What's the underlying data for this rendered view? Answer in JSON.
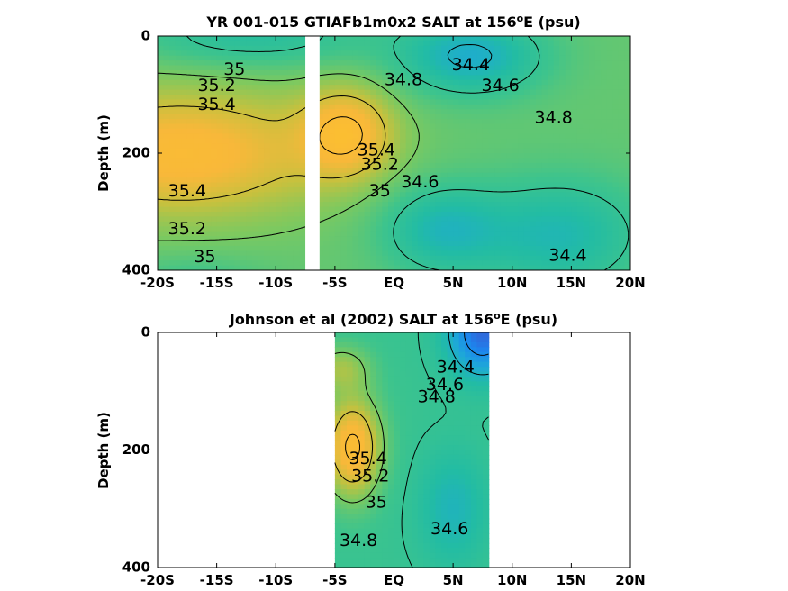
{
  "chart_data": [
    {
      "type": "heatmap",
      "title": "YR 001-015 GTIAFb1m0x2 SALT at 156",
      "title_superscript": "o",
      "title_suffix": "E (psu)",
      "ylabel": "Depth (m)",
      "xlim": [
        -20,
        20
      ],
      "ylim": [
        0,
        400
      ],
      "x_ticks": [
        -20,
        -15,
        -10,
        -5,
        0,
        5,
        10,
        15,
        20
      ],
      "x_tick_labels": [
        "-20S",
        "-15S",
        "-10S",
        "-5S",
        "EQ",
        "5N",
        "10N",
        "15N",
        "20N"
      ],
      "y_ticks": [
        0,
        200,
        400
      ],
      "y_tick_labels": [
        "0",
        "200",
        "400"
      ],
      "data_gap_x": [
        -7.5,
        -6.3
      ],
      "contour_levels": [
        34.4,
        34.6,
        34.8,
        35,
        35.2,
        35.4
      ],
      "contour_labels": [
        {
          "text": "35",
          "x": -13.5,
          "depth": 58
        },
        {
          "text": "35.2",
          "x": -15,
          "depth": 85
        },
        {
          "text": "35.4",
          "x": -15,
          "depth": 118
        },
        {
          "text": "35.4",
          "x": -17.5,
          "depth": 265
        },
        {
          "text": "35.2",
          "x": -17.5,
          "depth": 330
        },
        {
          "text": "35",
          "x": -16,
          "depth": 378
        },
        {
          "text": "34.8",
          "x": 0.8,
          "depth": 75
        },
        {
          "text": "34.4",
          "x": 6.5,
          "depth": 50
        },
        {
          "text": "34.6",
          "x": 9,
          "depth": 85
        },
        {
          "text": "34.8",
          "x": 13.5,
          "depth": 140
        },
        {
          "text": "35.4",
          "x": -1.5,
          "depth": 195
        },
        {
          "text": "35.2",
          "x": -1.2,
          "depth": 220
        },
        {
          "text": "35",
          "x": -1.2,
          "depth": 265
        },
        {
          "text": "34.6",
          "x": 2.2,
          "depth": 250
        },
        {
          "text": "34.4",
          "x": 14.7,
          "depth": 375
        }
      ]
    },
    {
      "type": "heatmap",
      "title": "Johnson et al (2002) SALT at 156",
      "title_superscript": "o",
      "title_suffix": "E (psu)",
      "ylabel": "Depth (m)",
      "xlim": [
        -20,
        20
      ],
      "ylim": [
        0,
        400
      ],
      "x_ticks": [
        -20,
        -15,
        -10,
        -5,
        0,
        5,
        10,
        15,
        20
      ],
      "x_tick_labels": [
        "-20S",
        "-15S",
        "-10S",
        "-5S",
        "EQ",
        "5N",
        "10N",
        "15N",
        "20N"
      ],
      "y_ticks": [
        0,
        200,
        400
      ],
      "y_tick_labels": [
        "0",
        "200",
        "400"
      ],
      "data_extent_x": [
        -5,
        8
      ],
      "contour_levels": [
        34.4,
        34.6,
        34.8,
        35,
        35.2,
        35.4
      ],
      "contour_labels": [
        {
          "text": "34.4",
          "x": 5.2,
          "depth": 60
        },
        {
          "text": "34.6",
          "x": 4.3,
          "depth": 90
        },
        {
          "text": "34.8",
          "x": 3.6,
          "depth": 110
        },
        {
          "text": "35.4",
          "x": -2.2,
          "depth": 215
        },
        {
          "text": "35.2",
          "x": -2,
          "depth": 245
        },
        {
          "text": "35",
          "x": -1.5,
          "depth": 290
        },
        {
          "text": "34.8",
          "x": -3,
          "depth": 355
        },
        {
          "text": "34.6",
          "x": 4.7,
          "depth": 335
        }
      ]
    }
  ],
  "colorscale": {
    "min": 34.2,
    "max": 35.5,
    "stops": [
      "#3d55cf",
      "#1c86ee",
      "#1ea9d7",
      "#22bca4",
      "#3ec48c",
      "#7cc960",
      "#c6c13e",
      "#f8b83a",
      "#fcbf30"
    ]
  }
}
